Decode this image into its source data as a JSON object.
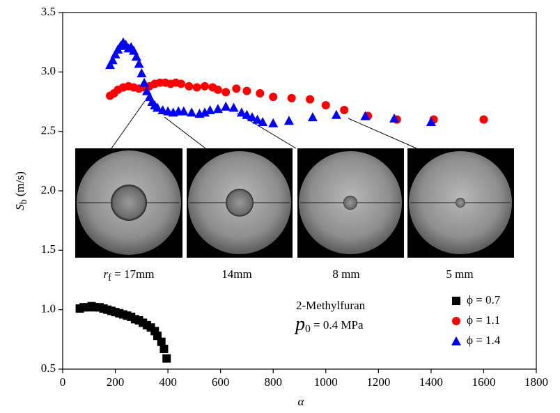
{
  "chart_data": {
    "type": "scatter",
    "xlabel": "α",
    "ylabel": {
      "main": "S",
      "sub": "b",
      "rest": " (m/s)"
    },
    "xlim": [
      0,
      1800
    ],
    "xticks": [
      0,
      200,
      400,
      600,
      800,
      1000,
      1200,
      1400,
      1600,
      1800
    ],
    "ylim": [
      0.5,
      3.5
    ],
    "yticks": [
      0.5,
      {
        "value": 1,
        "label": "1.0"
      },
      1.5,
      {
        "value": 2,
        "label": "2.0"
      },
      2.5,
      {
        "value": 3,
        "label": "3.0"
      },
      3.5
    ],
    "legend": "lower right",
    "annotations": {
      "fuel": "2-Methylfuran",
      "pressure": {
        "main": "p",
        "sub": "0",
        "rest": " = 0.4 MPa"
      },
      "radii": [
        {
          "main": "r",
          "sub": "f",
          "rest": " = 17mm"
        },
        {
          "main": "14mm"
        },
        {
          "main": "8 mm"
        },
        {
          "main": "5 mm"
        }
      ]
    },
    "series": [
      {
        "name": "ϕ = 0.7",
        "marker": "square",
        "color": "#000000",
        "x": [
          65,
          80,
          95,
          110,
          125,
          140,
          155,
          170,
          185,
          200,
          215,
          230,
          245,
          260,
          275,
          290,
          305,
          320,
          335,
          350,
          360,
          375,
          385,
          395
        ],
        "values": [
          1.01,
          1.02,
          1.02,
          1.03,
          1.02,
          1.02,
          1.01,
          1.0,
          0.99,
          0.98,
          0.97,
          0.96,
          0.95,
          0.94,
          0.92,
          0.91,
          0.89,
          0.87,
          0.85,
          0.82,
          0.78,
          0.73,
          0.67,
          0.59
        ]
      },
      {
        "name": "ϕ = 1.1",
        "marker": "circle",
        "color": "#ff0000",
        "x": [
          180,
          195,
          210,
          230,
          250,
          270,
          290,
          310,
          330,
          350,
          370,
          390,
          410,
          430,
          450,
          480,
          510,
          540,
          570,
          590,
          620,
          660,
          700,
          750,
          800,
          870,
          940,
          1000,
          1070,
          1160,
          1270,
          1410,
          1600
        ],
        "values": [
          2.8,
          2.82,
          2.85,
          2.87,
          2.88,
          2.87,
          2.86,
          2.87,
          2.88,
          2.9,
          2.91,
          2.91,
          2.9,
          2.91,
          2.9,
          2.88,
          2.87,
          2.88,
          2.87,
          2.85,
          2.83,
          2.86,
          2.84,
          2.82,
          2.79,
          2.78,
          2.77,
          2.72,
          2.68,
          2.63,
          2.6,
          2.6,
          2.6
        ]
      },
      {
        "name": "ϕ = 1.4",
        "marker": "triangle",
        "color": "#0000ff",
        "x": [
          180,
          190,
          200,
          210,
          220,
          230,
          240,
          250,
          260,
          270,
          280,
          290,
          300,
          310,
          320,
          330,
          340,
          350,
          360,
          380,
          400,
          420,
          440,
          460,
          490,
          520,
          540,
          560,
          590,
          620,
          650,
          680,
          700,
          720,
          740,
          760,
          800,
          860,
          950,
          1040,
          1150,
          1260,
          1400
        ],
        "values": [
          3.06,
          3.1,
          3.15,
          3.19,
          3.22,
          3.25,
          3.23,
          3.2,
          3.21,
          3.18,
          3.13,
          3.07,
          2.99,
          2.91,
          2.84,
          2.79,
          2.75,
          2.72,
          2.7,
          2.68,
          2.67,
          2.66,
          2.67,
          2.67,
          2.66,
          2.65,
          2.66,
          2.68,
          2.69,
          2.71,
          2.7,
          2.66,
          2.64,
          2.62,
          2.6,
          2.58,
          2.57,
          2.59,
          2.62,
          2.64,
          2.63,
          2.61,
          2.58
        ]
      }
    ]
  }
}
